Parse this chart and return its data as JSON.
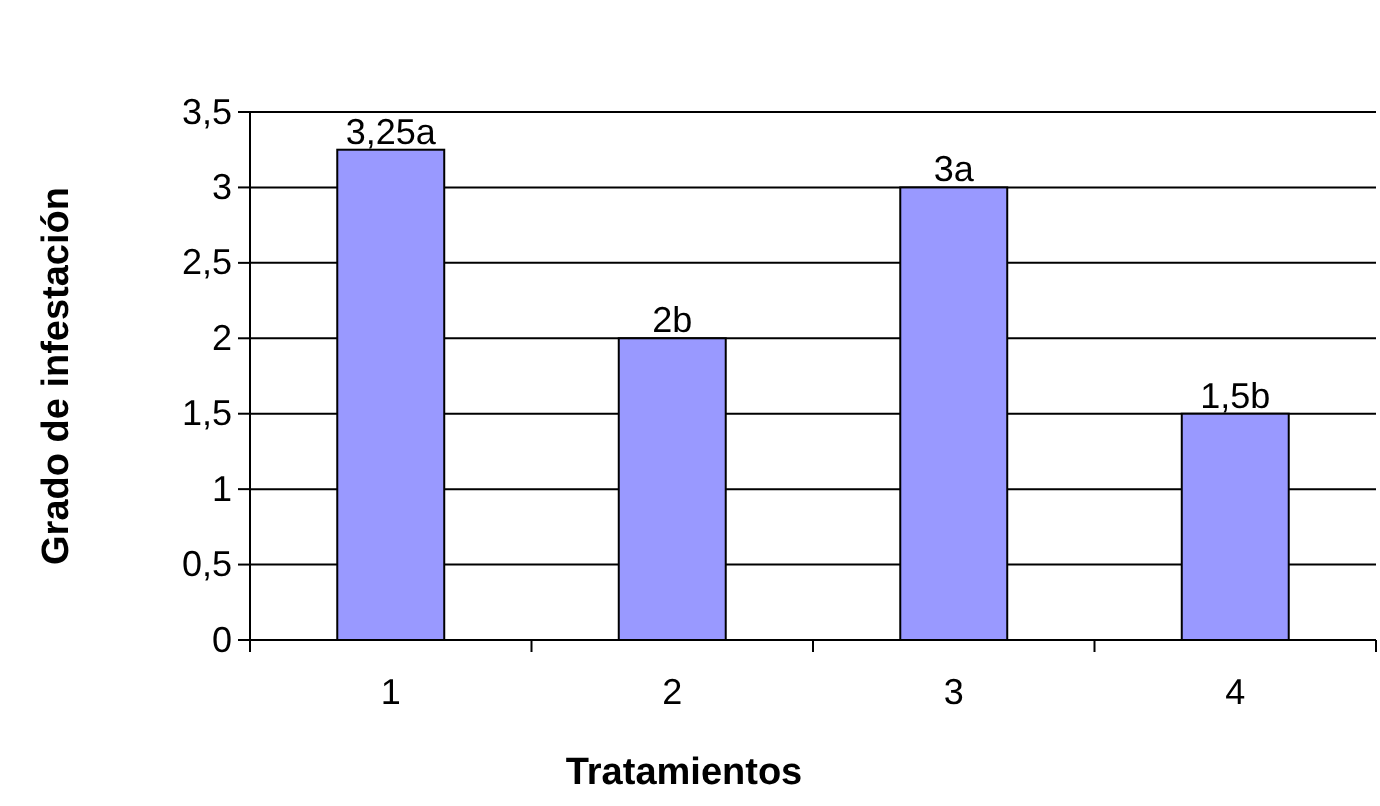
{
  "chart_data": {
    "type": "bar",
    "xlabel": "Tratamientos",
    "ylabel": "Grado de infestación",
    "categories": [
      "1",
      "2",
      "3",
      "4"
    ],
    "values": [
      3.25,
      2,
      3,
      1.5
    ],
    "value_labels": [
      "3,25a",
      "2b",
      "3a",
      "1,5b"
    ],
    "color": "#9999ff",
    "ylim": [
      0,
      3.5
    ],
    "yticks": [
      {
        "value": 0,
        "label": "0"
      },
      {
        "value": 0.5,
        "label": "0,5"
      },
      {
        "value": 1,
        "label": "1"
      },
      {
        "value": 1.5,
        "label": "1,5"
      },
      {
        "value": 2,
        "label": "2"
      },
      {
        "value": 2.5,
        "label": "2,5"
      },
      {
        "value": 3,
        "label": "3"
      },
      {
        "value": 3.5,
        "label": "3,5"
      }
    ],
    "grid": "y"
  }
}
